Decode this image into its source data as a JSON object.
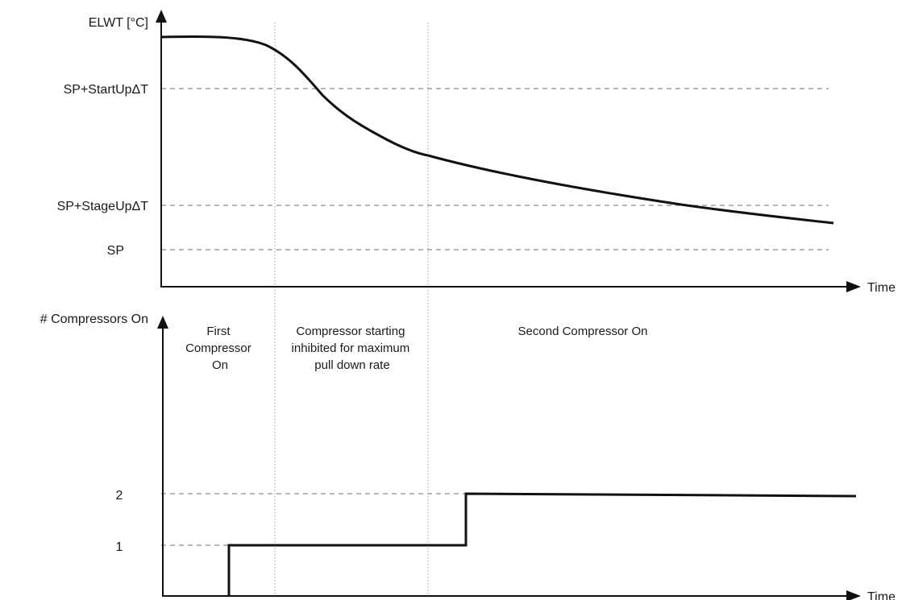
{
  "top_chart": {
    "y_axis_label": "ELWT [°C]",
    "x_axis_label": "Time",
    "levels": [
      {
        "id": "startup",
        "label": "SP+StartUpΔT"
      },
      {
        "id": "stageup",
        "label": "SP+StageUpΔT"
      },
      {
        "id": "sp",
        "label": "SP"
      }
    ]
  },
  "bottom_chart": {
    "y_axis_label": "# Compressors On",
    "x_axis_label": "Time",
    "ticks": [
      {
        "value": 2,
        "label": "2"
      },
      {
        "value": 1,
        "label": "1"
      }
    ],
    "phases": [
      {
        "id": "first",
        "lines": [
          "First",
          "Compressor",
          "On"
        ]
      },
      {
        "id": "inhibit",
        "lines": [
          "Compressor starting",
          "inhibited for maximum",
          "pull down rate"
        ]
      },
      {
        "id": "second",
        "lines": [
          "Second Compressor On"
        ]
      }
    ]
  },
  "colors": {
    "line": "#111111",
    "dashed_reference": "#8a8a8a",
    "phase_divider": "#9a9a9a"
  }
}
